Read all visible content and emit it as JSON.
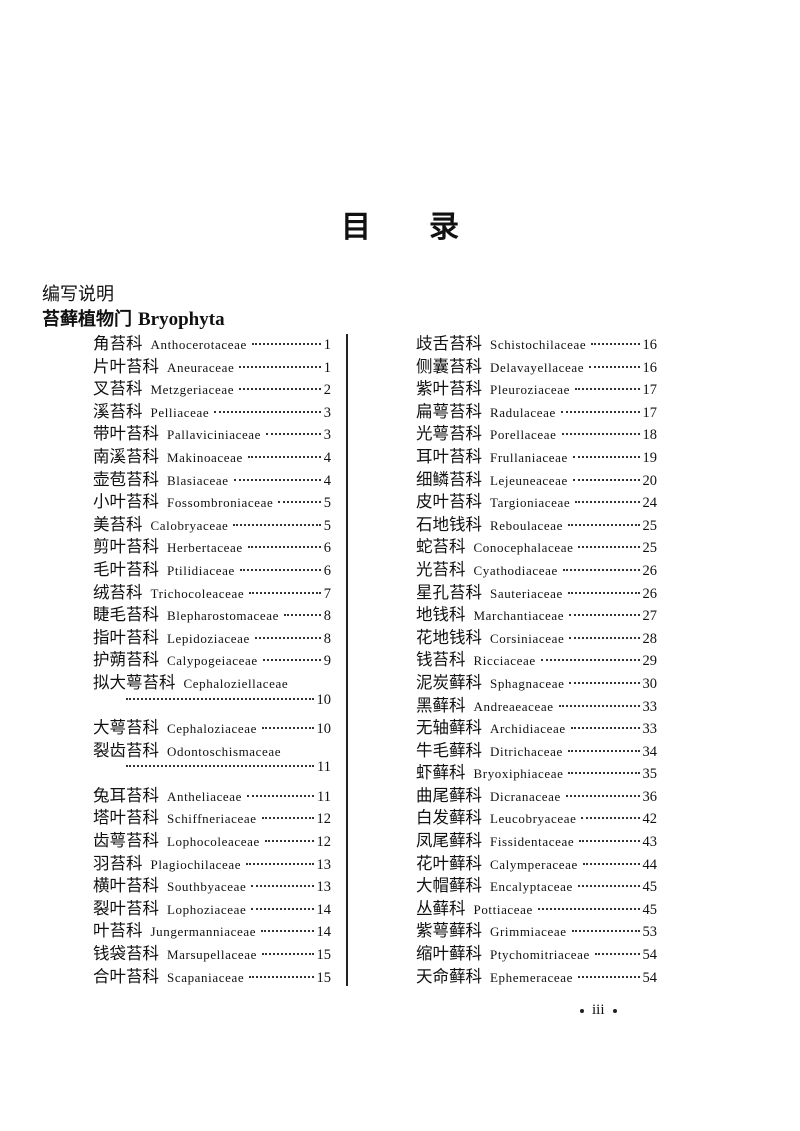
{
  "header": {
    "title": "目录"
  },
  "preface": "编写说明",
  "section": {
    "chinese": "苔藓植物门",
    "latin": "Bryophyta"
  },
  "columns": [
    {
      "entries": [
        {
          "chinese": "角苔科",
          "latin": "Anthocerotaceae",
          "page": 1
        },
        {
          "chinese": "片叶苔科",
          "latin": "Aneuraceae",
          "page": 1
        },
        {
          "chinese": "叉苔科",
          "latin": "Metzgeriaceae",
          "page": 2
        },
        {
          "chinese": "溪苔科",
          "latin": "Pelliaceae",
          "page": 3
        },
        {
          "chinese": "带叶苔科",
          "latin": "Pallaviciniaceae",
          "page": 3
        },
        {
          "chinese": "南溪苔科",
          "latin": "Makinoaceae",
          "page": 4
        },
        {
          "chinese": "壶苞苔科",
          "latin": "Blasiaceae",
          "page": 4
        },
        {
          "chinese": "小叶苔科",
          "latin": "Fossombroniaceae",
          "page": 5
        },
        {
          "chinese": "美苔科",
          "latin": "Calobryaceae",
          "page": 5
        },
        {
          "chinese": "剪叶苔科",
          "latin": "Herbertaceae",
          "page": 6
        },
        {
          "chinese": "毛叶苔科",
          "latin": "Ptilidiaceae",
          "page": 6
        },
        {
          "chinese": "绒苔科",
          "latin": "Trichocoleaceae",
          "page": 7
        },
        {
          "chinese": "睫毛苔科",
          "latin": "Blepharostomaceae",
          "page": 8
        },
        {
          "chinese": "指叶苔科",
          "latin": "Lepidoziaceae",
          "page": 8
        },
        {
          "chinese": "护蒴苔科",
          "latin": "Calypogeiaceae",
          "page": 9
        },
        {
          "chinese": "拟大萼苔科",
          "latin": "Cephaloziellaceae",
          "page": 10
        },
        {
          "chinese": "大萼苔科",
          "latin": "Cephaloziaceae",
          "page": 10
        },
        {
          "chinese": "裂齿苔科",
          "latin": "Odontoschismaceae",
          "page": 11
        },
        {
          "chinese": "兔耳苔科",
          "latin": "Antheliaceae",
          "page": 11
        },
        {
          "chinese": "塔叶苔科",
          "latin": "Schiffneriaceae",
          "page": 12
        },
        {
          "chinese": "齿萼苔科",
          "latin": "Lophocoleaceae",
          "page": 12
        },
        {
          "chinese": "羽苔科",
          "latin": "Plagiochilaceae",
          "page": 13
        },
        {
          "chinese": "横叶苔科",
          "latin": "Southbyaceae",
          "page": 13
        },
        {
          "chinese": "裂叶苔科",
          "latin": "Lophoziaceae",
          "page": 14
        },
        {
          "chinese": "叶苔科",
          "latin": "Jungermanniaceae",
          "page": 14
        },
        {
          "chinese": "钱袋苔科",
          "latin": "Marsupellaceae",
          "page": 15
        },
        {
          "chinese": "合叶苔科",
          "latin": "Scapaniaceae",
          "page": 15
        }
      ]
    },
    {
      "entries": [
        {
          "chinese": "歧舌苔科",
          "latin": "Schistochilaceae",
          "page": 16
        },
        {
          "chinese": "侧囊苔科",
          "latin": "Delavayellaceae",
          "page": 16
        },
        {
          "chinese": "紫叶苔科",
          "latin": "Pleuroziaceae",
          "page": 17
        },
        {
          "chinese": "扁萼苔科",
          "latin": "Radulaceae",
          "page": 17
        },
        {
          "chinese": "光萼苔科",
          "latin": "Porellaceae",
          "page": 18
        },
        {
          "chinese": "耳叶苔科",
          "latin": "Frullaniaceae",
          "page": 19
        },
        {
          "chinese": "细鳞苔科",
          "latin": "Lejeuneaceae",
          "page": 20
        },
        {
          "chinese": "皮叶苔科",
          "latin": "Targioniaceae",
          "page": 24
        },
        {
          "chinese": "石地钱科",
          "latin": "Reboulaceae",
          "page": 25
        },
        {
          "chinese": "蛇苔科",
          "latin": "Conocephalaceae",
          "page": 25
        },
        {
          "chinese": "光苔科",
          "latin": "Cyathodiaceae",
          "page": 26
        },
        {
          "chinese": "星孔苔科",
          "latin": "Sauteriaceae",
          "page": 26
        },
        {
          "chinese": "地钱科",
          "latin": "Marchantiaceae",
          "page": 27
        },
        {
          "chinese": "花地钱科",
          "latin": "Corsiniaceae",
          "page": 28
        },
        {
          "chinese": "钱苔科",
          "latin": "Ricciaceae",
          "page": 29
        },
        {
          "chinese": "泥炭藓科",
          "latin": "Sphagnaceae",
          "page": 30
        },
        {
          "chinese": "黑藓科",
          "latin": "Andreaeaceae",
          "page": 33
        },
        {
          "chinese": "无轴藓科",
          "latin": "Archidiaceae",
          "page": 33
        },
        {
          "chinese": "牛毛藓科",
          "latin": "Ditrichaceae",
          "page": 34
        },
        {
          "chinese": "虾藓科",
          "latin": "Bryoxiphiaceae",
          "page": 35
        },
        {
          "chinese": "曲尾藓科",
          "latin": "Dicranaceae",
          "page": 36
        },
        {
          "chinese": "白发藓科",
          "latin": "Leucobryaceae",
          "page": 42
        },
        {
          "chinese": "凤尾藓科",
          "latin": "Fissidentaceae",
          "page": 43
        },
        {
          "chinese": "花叶藓科",
          "latin": "Calymperaceae",
          "page": 44
        },
        {
          "chinese": "大帽藓科",
          "latin": "Encalyptaceae",
          "page": 45
        },
        {
          "chinese": "丛藓科",
          "latin": "Pottiaceae",
          "page": 45
        },
        {
          "chinese": "紫萼藓科",
          "latin": "Grimmiaceae",
          "page": 53
        },
        {
          "chinese": "缩叶藓科",
          "latin": "Ptychomitriaceae",
          "page": 54
        },
        {
          "chinese": "天命藓科",
          "latin": "Ephemeraceae",
          "page": 54
        }
      ]
    }
  ],
  "footer": {
    "page": "iii"
  }
}
